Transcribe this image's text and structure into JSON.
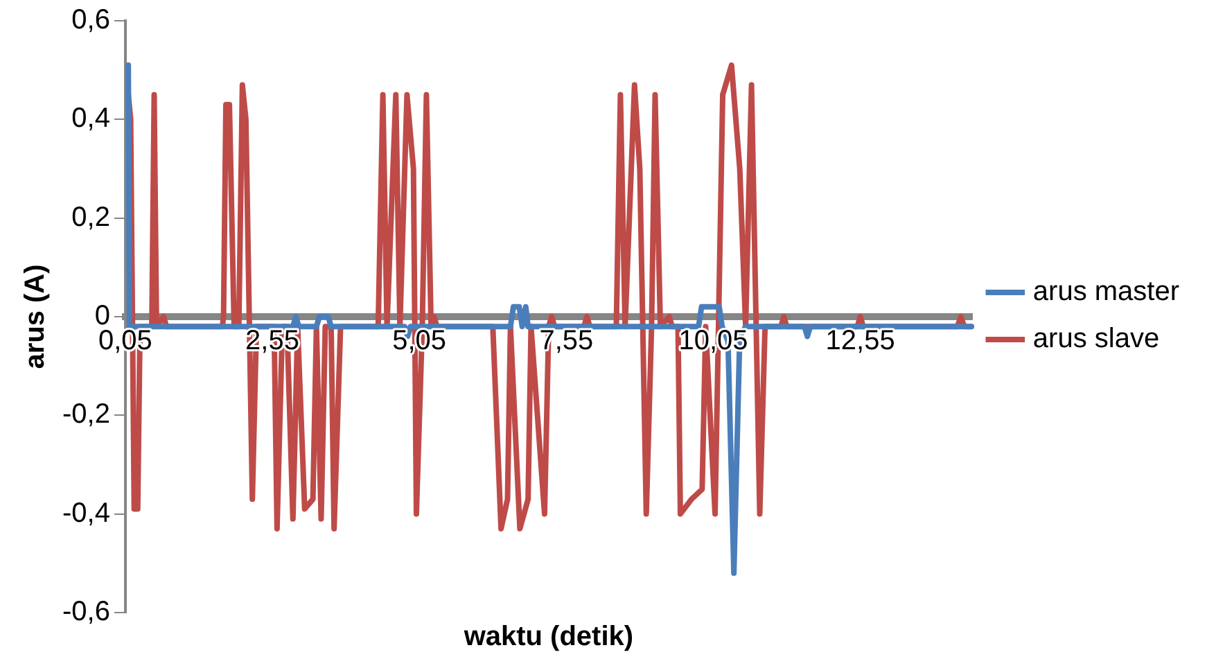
{
  "chart_data": {
    "type": "line",
    "xlabel": "waktu (detik)",
    "ylabel": "arus (A)",
    "xlim": [
      0.05,
      14.45
    ],
    "xticks": [
      {
        "value": 0.05,
        "label": "0,05"
      },
      {
        "value": 2.55,
        "label": "2,55"
      },
      {
        "value": 5.05,
        "label": "5,05"
      },
      {
        "value": 7.55,
        "label": "7,55"
      },
      {
        "value": 10.05,
        "label": "10,05"
      },
      {
        "value": 12.55,
        "label": "12,55"
      }
    ],
    "ylim": [
      -0.6,
      0.6
    ],
    "yticks": [
      {
        "value": -0.6,
        "label": "-0,6"
      },
      {
        "value": -0.4,
        "label": "-0,4"
      },
      {
        "value": -0.2,
        "label": "-0,2"
      },
      {
        "value": 0,
        "label": "0"
      },
      {
        "value": 0.2,
        "label": "0,2"
      },
      {
        "value": 0.4,
        "label": "0,4"
      },
      {
        "value": 0.6,
        "label": "0,6"
      }
    ],
    "grid": false,
    "legend": "right",
    "marker": "none",
    "line_style": "solid",
    "series": [
      {
        "name": "arus master",
        "color": "#4a7ebb",
        "x": [
          0.1,
          0.12,
          2.9,
          2.95,
          3.0,
          3.3,
          3.35,
          3.5,
          3.55,
          4.8,
          4.85,
          4.9,
          6.6,
          6.65,
          6.75,
          6.8,
          6.86,
          6.9,
          9.8,
          9.85,
          10.15,
          10.2,
          10.3,
          10.4,
          10.5,
          10.6,
          11.6,
          11.65,
          11.7,
          14.44
        ],
        "values": [
          0.51,
          -0.02,
          -0.02,
          0,
          -0.02,
          -0.02,
          0,
          0,
          -0.02,
          -0.02,
          -0.04,
          -0.02,
          -0.02,
          0.02,
          0.02,
          -0.02,
          0.02,
          -0.02,
          -0.02,
          0.02,
          0.02,
          -0.02,
          -0.05,
          -0.52,
          -0.04,
          -0.02,
          -0.02,
          -0.04,
          -0.02,
          -0.02
        ]
      },
      {
        "name": "arus slave",
        "color": "#be4b48",
        "x": [
          0.1,
          0.14,
          0.2,
          0.26,
          0.3,
          0.5,
          0.54,
          0.58,
          0.7,
          0.75,
          1.0,
          1.7,
          1.72,
          1.76,
          1.82,
          1.9,
          1.98,
          2.04,
          2.1,
          2.21,
          2.28,
          2.58,
          2.63,
          2.72,
          2.8,
          2.9,
          2.98,
          3.1,
          3.24,
          3.3,
          3.38,
          3.45,
          3.55,
          3.6,
          3.71,
          4.35,
          4.43,
          4.5,
          4.65,
          4.72,
          4.84,
          4.95,
          5.0,
          5.1,
          5.17,
          5.25,
          5.3,
          5.35,
          6.3,
          6.44,
          6.55,
          6.6,
          6.76,
          6.9,
          6.95,
          7.18,
          7.25,
          7.3,
          7.35,
          7.85,
          7.9,
          7.95,
          8.4,
          8.47,
          8.55,
          8.71,
          8.8,
          8.91,
          9.0,
          9.06,
          9.15,
          9.3,
          9.35,
          9.45,
          9.49,
          9.68,
          9.86,
          9.92,
          10.08,
          10.21,
          10.36,
          10.5,
          10.6,
          10.7,
          10.84,
          10.93,
          11.2,
          11.25,
          11.3,
          12.5,
          12.55,
          12.6,
          14.2,
          14.26,
          14.32,
          14.44
        ],
        "values": [
          0.45,
          0.4,
          -0.39,
          -0.39,
          -0.02,
          -0.02,
          0.45,
          -0.02,
          0,
          -0.02,
          -0.02,
          -0.02,
          0,
          0.43,
          0.43,
          -0.02,
          -0.02,
          0.47,
          0.4,
          -0.37,
          -0.02,
          -0.02,
          -0.43,
          -0.02,
          -0.02,
          -0.41,
          -0.02,
          -0.39,
          -0.37,
          -0.02,
          -0.41,
          -0.02,
          -0.02,
          -0.43,
          -0.02,
          -0.02,
          0.45,
          -0.02,
          0.45,
          -0.02,
          0.45,
          0.3,
          -0.4,
          -0.02,
          0.45,
          -0.02,
          0,
          -0.02,
          -0.02,
          -0.43,
          -0.37,
          -0.02,
          -0.43,
          -0.37,
          -0.02,
          -0.4,
          -0.02,
          0,
          -0.02,
          -0.02,
          0,
          -0.02,
          -0.02,
          0.45,
          -0.02,
          0.47,
          0.3,
          -0.4,
          -0.02,
          0.45,
          -0.02,
          0,
          -0.02,
          -0.02,
          -0.4,
          -0.37,
          -0.35,
          -0.02,
          -0.4,
          0.45,
          0.51,
          0.3,
          -0.02,
          0.47,
          -0.4,
          -0.02,
          -0.02,
          0,
          -0.02,
          -0.02,
          0,
          -0.02,
          -0.02,
          0,
          -0.02,
          -0.02
        ]
      }
    ]
  }
}
